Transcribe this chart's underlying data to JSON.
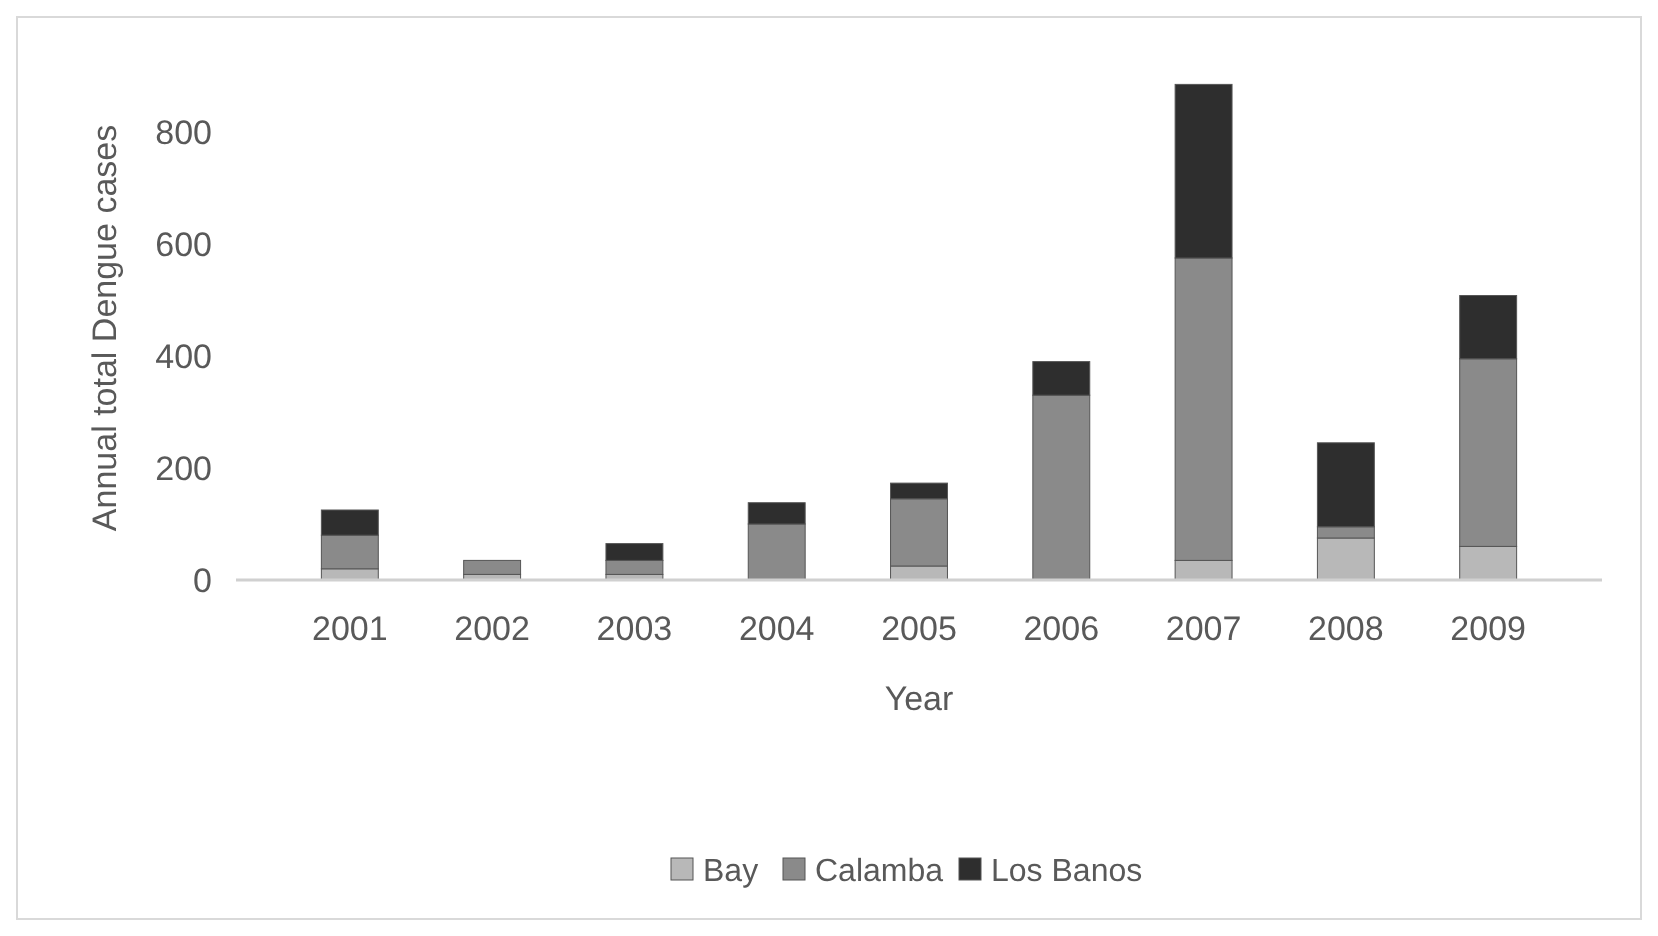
{
  "chart_data": {
    "type": "bar",
    "xlabel": "Year",
    "ylabel": "Annual total Dengue cases",
    "categories": [
      "2001",
      "2002",
      "2003",
      "2004",
      "2005",
      "2006",
      "2007",
      "2008",
      "2009"
    ],
    "stacked": true,
    "ylim": [
      0,
      900
    ],
    "yticks": [
      0,
      200,
      400,
      600,
      800
    ],
    "grid": false,
    "legend": "bottom",
    "series": [
      {
        "name": "Bay",
        "color": "#b8b8b8",
        "values": [
          20,
          10,
          10,
          null,
          25,
          null,
          35,
          75,
          60
        ]
      },
      {
        "name": "Calamba",
        "color": "#8a8a8a",
        "values": [
          60,
          25,
          25,
          100,
          120,
          330,
          540,
          20,
          335
        ]
      },
      {
        "name": "Los Banos",
        "color": "#2e2e2e",
        "values": [
          45,
          0,
          30,
          38,
          28,
          60,
          310,
          150,
          113
        ]
      }
    ]
  }
}
